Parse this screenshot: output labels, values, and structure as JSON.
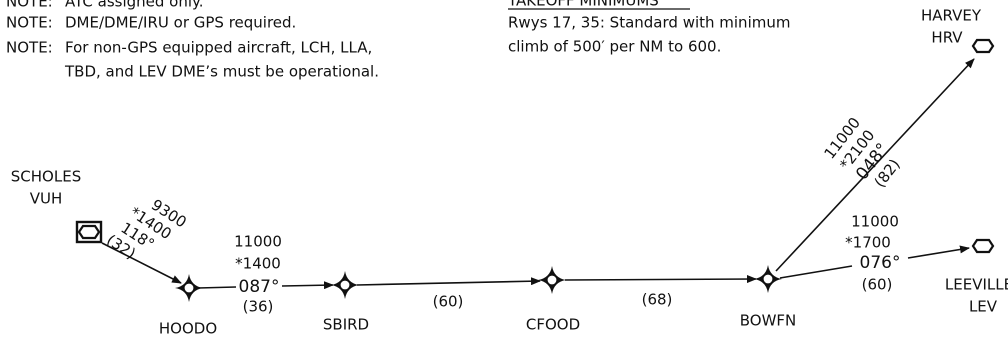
{
  "notes": [
    {
      "label": "NOTE:",
      "lines": [
        "ATC assigned only."
      ]
    },
    {
      "label": "NOTE:",
      "lines": [
        "DME/DME/IRU or GPS required."
      ]
    },
    {
      "label": "NOTE:",
      "lines": [
        "For non-GPS equipped aircraft, LCH, LLA,",
        "TBD, and LEV DME’s must be operational."
      ]
    }
  ],
  "takeoff_minimums": {
    "title": "TAKEOFF MINIMUMS",
    "lines": [
      "Rwys 17, 35:  Standard with minimum",
      "climb of 500′ per NM to 600."
    ]
  },
  "navaids": [
    {
      "name": "SCHOLES",
      "id": "VUH"
    },
    {
      "name": "HARVEY",
      "id": "HRV"
    },
    {
      "name": "LEEVILLE",
      "id": "LEV"
    }
  ],
  "fixes": [
    "HOODO",
    "SBIRD",
    "CFOOD",
    "BOWFN"
  ],
  "legs": [
    {
      "altitude": "9300",
      "min_altitude": "*1400",
      "course": "118°",
      "distance": "(32)"
    },
    {
      "altitude": "11000",
      "min_altitude": "*1400",
      "course": "087°",
      "distance": "(36)"
    },
    {
      "distance": "(60)"
    },
    {
      "distance": "(68)"
    },
    {
      "altitude": "11000",
      "min_altitude": "*2100",
      "course": "048°",
      "distance": "(82)"
    },
    {
      "altitude": "11000",
      "min_altitude": "*1700",
      "course": "076°",
      "distance": "(60)"
    }
  ]
}
